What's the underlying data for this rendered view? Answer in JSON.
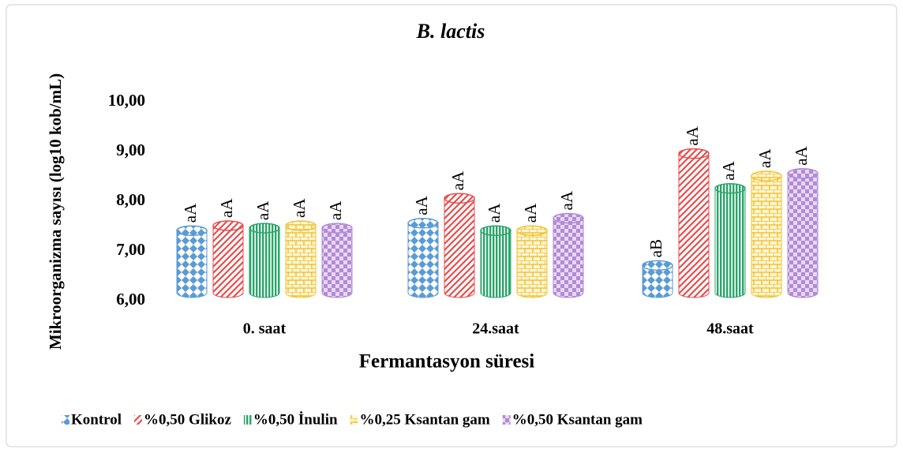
{
  "chart_data": {
    "type": "bar",
    "title": "B. lactis",
    "xlabel": "Fermantasyon süresi",
    "ylabel": "Mikroorganizma sayısı (log10 kob/mL)",
    "categories": [
      "0. saat",
      "24.saat",
      "48.saat"
    ],
    "ylim": [
      6,
      10
    ],
    "yticks": [
      {
        "value": 6,
        "label": "6,00"
      },
      {
        "value": 7,
        "label": "7,00"
      },
      {
        "value": 8,
        "label": "8,00"
      },
      {
        "value": 9,
        "label": "9,00"
      },
      {
        "value": 10,
        "label": "10,00"
      }
    ],
    "series": [
      {
        "name": "Kontrol",
        "color": "#5b9bd5",
        "values": [
          7.25,
          7.4,
          6.55
        ],
        "annotations": [
          "aA",
          "aA",
          "aB"
        ]
      },
      {
        "name": "%0,50 Glikoz",
        "color": "#e84c4c",
        "values": [
          7.35,
          7.9,
          8.8
        ],
        "annotations": [
          "aA",
          "aA",
          "aA"
        ]
      },
      {
        "name": "%0,50 İnulin",
        "color": "#2aa56b",
        "values": [
          7.3,
          7.25,
          8.1
        ],
        "annotations": [
          "aA",
          "aA",
          "aA"
        ]
      },
      {
        "name": "%0,25 Ksantan gam",
        "color": "#f2c230",
        "values": [
          7.35,
          7.25,
          8.35
        ],
        "annotations": [
          "aA",
          "aA",
          "aA"
        ]
      },
      {
        "name": "%0,50 Ksantan gam",
        "color": "#b38ad6",
        "values": [
          7.3,
          7.5,
          8.4
        ],
        "annotations": [
          "aA",
          "aA",
          "aA"
        ]
      }
    ],
    "legend": "bottom"
  }
}
